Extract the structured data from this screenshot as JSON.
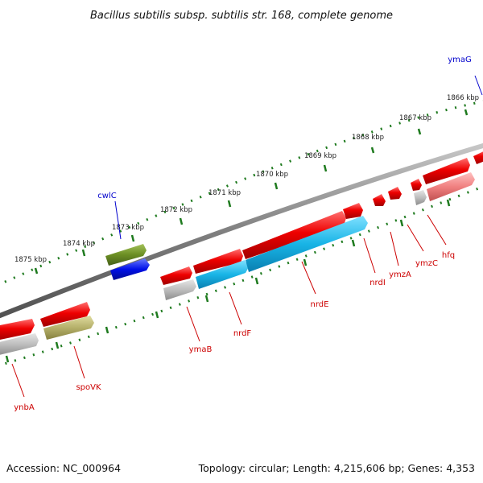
{
  "header": {
    "title": "Bacillus subtilis subsp. subtilis str. 168, complete genome"
  },
  "footer": {
    "accession": "Accession: NC_000964",
    "topology": "Topology: circular; Length: 4,215,606 bp; Genes: 4,353"
  },
  "colors": {
    "backbone": "#888888",
    "tick": "#1e7a1e",
    "forward_gene": "#e60000",
    "rrna": "#1040e0",
    "trna_like": "#6b8e23",
    "misc": "#b0b0b0",
    "cds_blue": "#18b4e6",
    "olive": "#b5b06a",
    "pink": "#f08080",
    "label_red": "#cc0000",
    "label_blue": "#0000cc"
  },
  "scale": {
    "unit": "kbp",
    "labels": [
      "1866 kbp",
      "1867 kbp",
      "1868 kbp",
      "1869 kbp",
      "1870 kbp",
      "1871 kbp",
      "1872 kbp",
      "1873 kbp",
      "1874 kbp",
      "1875 kbp"
    ]
  },
  "gene_labels": {
    "top": [
      "ymaG",
      "cwlC"
    ],
    "bottom": [
      "ynbA",
      "spoVK",
      "ymaB",
      "nrdF",
      "nrdE",
      "nrdI",
      "ymzA",
      "ymzC",
      "hfq"
    ]
  }
}
